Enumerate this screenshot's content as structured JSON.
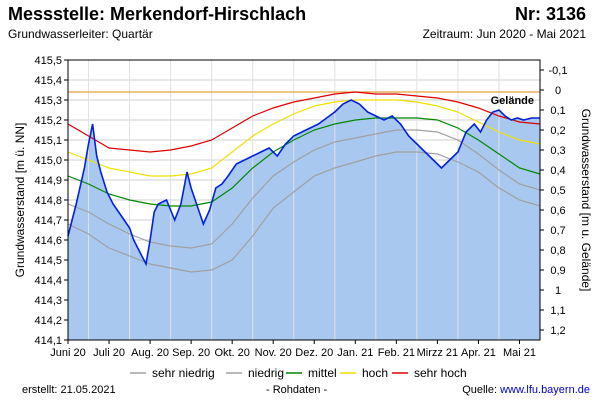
{
  "header": {
    "title": "Messstelle: Merkendorf-Hirschlach",
    "number": "Nr: 3136",
    "subtitle": "Grundwasserleiter: Quartär",
    "period": "Zeitraum: Jun 2020 - Mai 2021"
  },
  "footer": {
    "created": "erstellt:  21.05.2021",
    "raw": "- Rohdaten -",
    "source_label": "Quelle: ",
    "source_link": "www.lfu.bayern.de"
  },
  "colors": {
    "area": "#a8c8f0",
    "measured": "#0022dd",
    "sehr_niedrig": "#a0a0a0",
    "niedrig": "#a0a0a0",
    "mittel": "#008800",
    "hoch": "#f0e000",
    "sehr_hoch": "#dd0000",
    "gelaende": "#e8a040",
    "grid": "#d0d0d0"
  },
  "chart_data": {
    "type": "line",
    "title": "",
    "xlabel": "",
    "ylabel": "Grundwasserstand [m ü. NN]",
    "ylabel_right": "Grundwasserstand [m u. Gelände]",
    "ylim": [
      414.1,
      415.5
    ],
    "ylim_right": [
      1.25,
      -0.15
    ],
    "yticks": [
      "415,5",
      "415,4",
      "415,3",
      "415,2",
      "415,1",
      "415,0",
      "414,9",
      "414,8",
      "414,7",
      "414,6",
      "414,5",
      "414,4",
      "414,3",
      "414,2",
      "414,1"
    ],
    "yticks_right": [
      "-0,1",
      "0",
      "0,1",
      "0,2",
      "0,3",
      "0,4",
      "0,5",
      "0,6",
      "0,7",
      "0,8",
      "0,9",
      "1",
      "1,1",
      "1,2"
    ],
    "x_labels": [
      "Juni 20",
      "Juli 20",
      "Aug. 20",
      "Sep. 20",
      "Okt. 20",
      "Nov. 20",
      "Dez. 20",
      "Jan. 21",
      "Feb. 21",
      "Mirzz 21",
      "Apr. 21",
      "Mai 21"
    ],
    "gelaende": {
      "label": "Gelände",
      "value": 415.34
    },
    "grid": true,
    "legend_position": "bottom",
    "series": [
      {
        "name": "sehr niedrig",
        "x": [
          0,
          0.5,
          1,
          1.5,
          2,
          2.5,
          3,
          3.5,
          4,
          4.5,
          5,
          5.5,
          6,
          6.5,
          7,
          7.5,
          8,
          8.5,
          9,
          9.5,
          10,
          10.5,
          11,
          11.5
        ],
        "values": [
          414.68,
          414.63,
          414.56,
          414.52,
          414.48,
          414.46,
          414.44,
          414.45,
          414.5,
          414.62,
          414.76,
          414.84,
          414.92,
          414.96,
          414.99,
          415.02,
          415.04,
          415.04,
          415.03,
          414.99,
          414.94,
          414.86,
          414.8,
          414.77
        ]
      },
      {
        "name": "niedrig",
        "x": [
          0,
          0.5,
          1,
          1.5,
          2,
          2.5,
          3,
          3.5,
          4,
          4.5,
          5,
          5.5,
          6,
          6.5,
          7,
          7.5,
          8,
          8.5,
          9,
          9.5,
          10,
          10.5,
          11,
          11.5
        ],
        "values": [
          414.78,
          414.74,
          414.68,
          414.63,
          414.59,
          414.57,
          414.56,
          414.58,
          414.68,
          414.81,
          414.92,
          414.99,
          415.05,
          415.09,
          415.11,
          415.13,
          415.15,
          415.15,
          415.14,
          415.1,
          415.03,
          414.95,
          414.88,
          414.85
        ]
      },
      {
        "name": "mittel",
        "x": [
          0,
          0.5,
          1,
          1.5,
          2,
          2.5,
          3,
          3.5,
          4,
          4.5,
          5,
          5.5,
          6,
          6.5,
          7,
          7.5,
          8,
          8.5,
          9,
          9.5,
          10,
          10.5,
          11,
          11.5
        ],
        "values": [
          414.92,
          414.88,
          414.83,
          414.8,
          414.78,
          414.77,
          414.77,
          414.79,
          414.86,
          414.96,
          415.04,
          415.1,
          415.15,
          415.18,
          415.2,
          415.21,
          415.21,
          415.21,
          415.2,
          415.16,
          415.1,
          415.03,
          414.96,
          414.93
        ]
      },
      {
        "name": "hoch",
        "x": [
          0,
          0.5,
          1,
          1.5,
          2,
          2.5,
          3,
          3.5,
          4,
          4.5,
          5,
          5.5,
          6,
          6.5,
          7,
          7.5,
          8,
          8.5,
          9,
          9.5,
          10,
          10.5,
          11,
          11.5
        ],
        "values": [
          415.04,
          415.0,
          414.96,
          414.94,
          414.92,
          414.92,
          414.93,
          414.96,
          415.04,
          415.12,
          415.18,
          415.23,
          415.27,
          415.29,
          415.3,
          415.3,
          415.3,
          415.29,
          415.27,
          415.24,
          415.19,
          415.14,
          415.1,
          415.08
        ]
      },
      {
        "name": "sehr hoch",
        "x": [
          0,
          0.5,
          1,
          1.5,
          2,
          2.5,
          3,
          3.5,
          4,
          4.5,
          5,
          5.5,
          6,
          6.5,
          7,
          7.5,
          8,
          8.5,
          9,
          9.5,
          10,
          10.5,
          11,
          11.5
        ],
        "values": [
          415.18,
          415.12,
          415.06,
          415.05,
          415.04,
          415.05,
          415.07,
          415.1,
          415.16,
          415.22,
          415.26,
          415.29,
          415.31,
          415.33,
          415.34,
          415.33,
          415.33,
          415.32,
          415.31,
          415.29,
          415.26,
          415.22,
          415.19,
          415.18
        ]
      },
      {
        "name": "Messwerte",
        "x": [
          0,
          0.2,
          0.4,
          0.5,
          0.6,
          0.7,
          0.8,
          0.95,
          1.1,
          1.3,
          1.5,
          1.6,
          1.75,
          1.9,
          2.0,
          2.1,
          2.2,
          2.4,
          2.6,
          2.75,
          2.9,
          3.0,
          3.1,
          3.2,
          3.3,
          3.45,
          3.6,
          3.75,
          3.9,
          4.1,
          4.3,
          4.5,
          4.7,
          4.9,
          5.1,
          5.3,
          5.5,
          5.7,
          5.9,
          6.1,
          6.3,
          6.5,
          6.7,
          6.9,
          7.1,
          7.3,
          7.5,
          7.7,
          7.9,
          8.1,
          8.3,
          8.5,
          8.7,
          8.9,
          9.1,
          9.3,
          9.5,
          9.7,
          9.9,
          10.05,
          10.2,
          10.35,
          10.5,
          10.65,
          10.8,
          10.95,
          11.1,
          11.3,
          11.5
        ],
        "values": [
          414.62,
          414.78,
          414.96,
          415.08,
          415.18,
          415.02,
          414.94,
          414.84,
          414.78,
          414.72,
          414.66,
          414.6,
          414.54,
          414.48,
          414.6,
          414.74,
          414.78,
          414.8,
          414.7,
          414.78,
          414.94,
          414.86,
          414.8,
          414.74,
          414.68,
          414.75,
          414.86,
          414.88,
          414.92,
          414.98,
          415.0,
          415.02,
          415.04,
          415.06,
          415.02,
          415.08,
          415.12,
          415.14,
          415.16,
          415.18,
          415.21,
          415.24,
          415.28,
          415.3,
          415.28,
          415.24,
          415.22,
          415.2,
          415.22,
          415.18,
          415.12,
          415.08,
          415.04,
          415.0,
          414.96,
          415.0,
          415.04,
          415.14,
          415.18,
          415.14,
          415.2,
          415.24,
          415.25,
          415.22,
          415.2,
          415.21,
          415.2,
          415.21,
          415.21
        ]
      }
    ]
  }
}
